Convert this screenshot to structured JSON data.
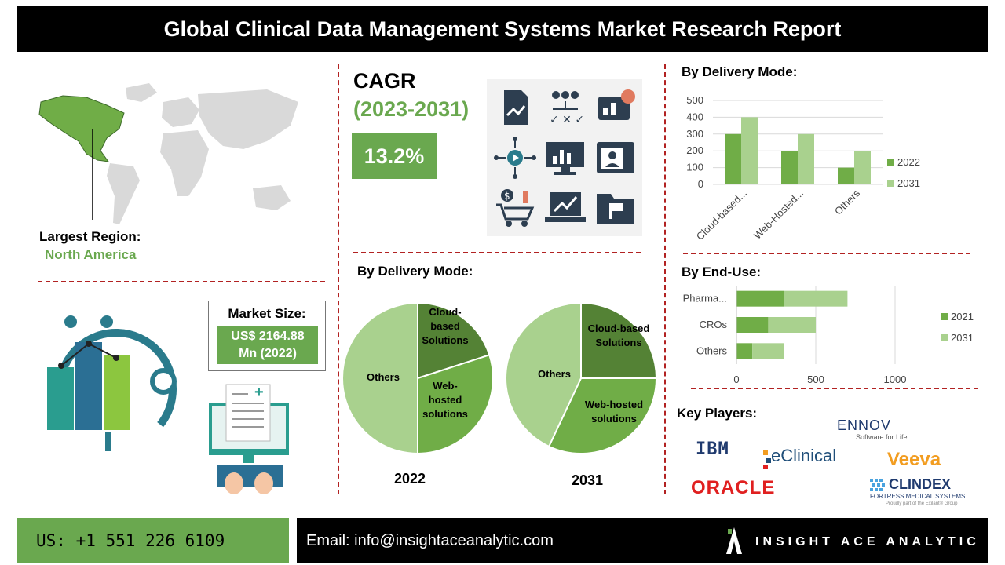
{
  "title": "Global Clinical Data Management Systems Market Research Report",
  "region": {
    "label": "Largest Region:",
    "value": "North America"
  },
  "cagr": {
    "label": "CAGR",
    "period": "(2023-2031)",
    "value": "13.2%"
  },
  "market_size": {
    "label": "Market Size:",
    "value_line1": "US$ 2164.88",
    "value_line2": "Mn (2022)"
  },
  "pies": {
    "title": "By Delivery Mode:",
    "year1": "2022",
    "year2": "2031",
    "p1_labels": {
      "cloud": "Cloud-\nbased\nSolutions",
      "web": "Web-\nhosted\nsolutions",
      "others": "Others"
    },
    "p2_labels": {
      "cloud": "Cloud-based\nSolutions",
      "web": "Web-hosted\nsolutions",
      "others": "Others"
    }
  },
  "bar_section_title": "By Delivery Mode:",
  "hbar_section_title": "By End-Use:",
  "key_players": {
    "title": "Key Players:",
    "logos": [
      "IBM",
      "eClinical",
      "ENNOV",
      "Software for Life",
      "Veeva",
      "ORACLE",
      "CLINDEX",
      "FORTRESS MEDICAL SYSTEMS",
      "Proudly part of the Exilant® Group"
    ]
  },
  "footer": {
    "phone": "US: +1 551 226 6109",
    "email": "Email: info@insightaceanalytic.com",
    "brand": "INSIGHT ACE ANALYTIC"
  },
  "colors": {
    "dark_green": "#548235",
    "mid_green": "#70ad47",
    "light_green": "#a9d18e",
    "accent": "#6aa84f",
    "divider": "#b22222"
  },
  "icons": [
    "document-chart-icon",
    "people-choice-icon",
    "analytics-screen-icon",
    "network-play-icon",
    "monitor-chart-icon",
    "profile-card-icon",
    "money-cart-icon",
    "laptop-growth-icon",
    "flag-folder-icon"
  ],
  "chart_data": [
    {
      "type": "bar",
      "title": "By Delivery Mode:",
      "categories": [
        "Cloud-based...",
        "Web-Hosted...",
        "Others"
      ],
      "series": [
        {
          "name": "2022",
          "values": [
            300,
            200,
            100
          ]
        },
        {
          "name": "2031",
          "values": [
            400,
            300,
            200
          ]
        }
      ],
      "ylim": [
        0,
        500
      ],
      "yticks": [
        "0",
        "100",
        "200",
        "300",
        "400",
        "500"
      ],
      "legend": "right",
      "grid": true
    },
    {
      "type": "bar",
      "orientation": "horizontal",
      "stacked": true,
      "title": "By End-Use:",
      "categories": [
        "Pharma...",
        "CROs",
        "Others"
      ],
      "series": [
        {
          "name": "2021",
          "values": [
            300,
            200,
            100
          ]
        },
        {
          "name": "2031",
          "values": [
            400,
            300,
            200
          ]
        }
      ],
      "xlim": [
        0,
        1000
      ],
      "xticks": [
        "0",
        "500",
        "1000"
      ],
      "legend": "right",
      "grid": true
    },
    {
      "type": "pie",
      "title": "2022",
      "slices": [
        {
          "label": "Cloud-based Solutions",
          "value": 20
        },
        {
          "label": "Web-hosted solutions",
          "value": 30
        },
        {
          "label": "Others",
          "value": 50
        }
      ]
    },
    {
      "type": "pie",
      "title": "2031",
      "slices": [
        {
          "label": "Cloud-based Solutions",
          "value": 25
        },
        {
          "label": "Web-hosted solutions",
          "value": 32
        },
        {
          "label": "Others",
          "value": 43
        }
      ]
    }
  ]
}
